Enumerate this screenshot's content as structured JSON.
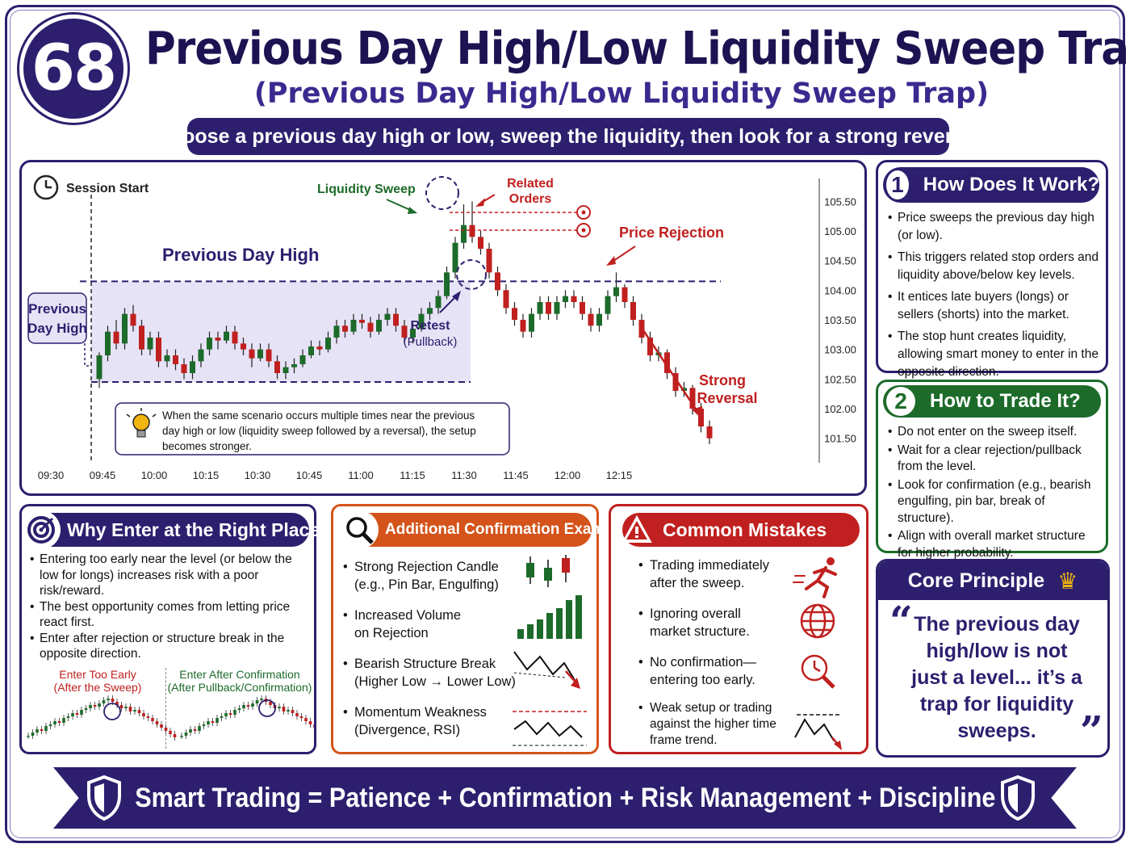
{
  "badge": "68",
  "title": "Previous Day High/Low Liquidity Sweep Trap",
  "subtitle": "(Previous Day High/Low Liquidity Sweep Trap)",
  "tagline": "Choose a previous day high or low, sweep the liquidity, then look for a strong reversal",
  "chart": {
    "session_start": "Session Start",
    "liquidity_sweep": "Liquidity Sweep",
    "related_orders_1": "Related",
    "related_orders_2": "Orders",
    "price_rejection": "Price Rejection",
    "previous_day_high": "Previous Day High",
    "pdh_box_1": "Previous",
    "pdh_box_2": "Day High",
    "retest_1": "Retest",
    "retest_2": "(Pullback)",
    "strong_reversal_1": "Strong",
    "strong_reversal_2": "Reversal",
    "note_1": "When the same scenario occurs multiple times near the previous",
    "note_2": "day high or low (liquidity sweep followed by a reversal), the setup",
    "note_3": "becomes stronger."
  },
  "colors": {
    "navy": "#2d1f6e",
    "green": "#1d6b2a",
    "orange": "#d4531a",
    "red": "#c0201f",
    "gold": "#f2b50f"
  },
  "how_it_works": {
    "number": "1",
    "title": "How Does It Work?",
    "items": [
      "Price sweeps the previous day high (or low).",
      "This triggers related stop orders and liquidity above/below key levels.",
      "It entices late buyers (longs) or sellers (shorts) into the market.",
      "The stop hunt creates liquidity, allowing smart money to enter in the opposite direction."
    ]
  },
  "how_to_trade": {
    "number": "2",
    "title": "How to Trade It?",
    "items": [
      "Do not enter on the sweep itself.",
      "Wait for a clear rejection/pullback from the level.",
      "Look for confirmation (e.g., bearish engulfing, pin bar, break of structure).",
      "Align with overall market structure for higher probability."
    ]
  },
  "core_principle": {
    "title": "Core Principle",
    "crown_icon": "crown-icon",
    "quote": "The previous day high/low is not just a level... it’s a trap for liquidity sweeps."
  },
  "why_enter": {
    "title": "Why Enter at the Right Place?",
    "items": [
      "Entering too early near the level (or below the low for longs) increases risk with a poor risk/reward.",
      "The best opportunity comes from letting price react first.",
      "Enter after rejection or structure break in the opposite direction."
    ],
    "early_1": "Enter Too Early",
    "early_2": "(After the Sweep)",
    "after_1": "Enter After Confirmation",
    "after_2": "(After Pullback/Confirmation)"
  },
  "confirmation": {
    "title": "Additional Confirmation Examples",
    "i1a": "Strong Rejection Candle",
    "i1b": "(e.g., Pin Bar, Engulfing)",
    "i2a": "Increased Volume",
    "i2b": "on Rejection",
    "i3a": "Bearish Structure Break",
    "i3b": "(Higher Low → Lower Low)",
    "i4a": "Momentum Weakness",
    "i4b": "(Divergence, RSI)"
  },
  "mistakes": {
    "title": "Common Mistakes",
    "m1a": "Trading immediately",
    "m1b": "after the sweep.",
    "m2a": "Ignoring overall",
    "m2b": "market structure.",
    "m3a": "No confirmation—",
    "m3b": "entering too early.",
    "m4a": "Weak setup or trading",
    "m4b": "against the higher time",
    "m4c": "frame trend."
  },
  "banner": "Smart Trading = Patience + Confirmation + Risk Management + Discipline",
  "chart_data": {
    "type": "candlestick",
    "x_ticks": [
      "09:30",
      "09:45",
      "10:00",
      "10:15",
      "10:30",
      "10:45",
      "11:00",
      "11:15",
      "11:30",
      "11:45",
      "12:00",
      "12:15"
    ],
    "y_ticks": [
      "105.50",
      "105.00",
      "104.50",
      "104.00",
      "103.50",
      "103.00",
      "102.50",
      "102.00",
      "101.50"
    ],
    "ylim": [
      101.25,
      105.75
    ],
    "previous_day_high": 104.15,
    "range_low": 102.45,
    "candles": [
      [
        102.5,
        102.9,
        102.35,
        102.95
      ],
      [
        102.9,
        103.3,
        102.8,
        103.4
      ],
      [
        103.3,
        103.1,
        103.0,
        103.5
      ],
      [
        103.1,
        103.6,
        103.0,
        103.7
      ],
      [
        103.6,
        103.4,
        103.3,
        103.75
      ],
      [
        103.4,
        103.0,
        102.9,
        103.5
      ],
      [
        103.0,
        103.2,
        102.9,
        103.3
      ],
      [
        103.2,
        102.8,
        102.7,
        103.3
      ],
      [
        102.8,
        102.9,
        102.7,
        103.0
      ],
      [
        102.9,
        102.75,
        102.65,
        103.0
      ],
      [
        102.75,
        102.6,
        102.5,
        102.85
      ],
      [
        102.6,
        102.8,
        102.5,
        102.9
      ],
      [
        102.8,
        103.0,
        102.7,
        103.1
      ],
      [
        103.0,
        103.2,
        102.9,
        103.3
      ],
      [
        103.2,
        103.15,
        103.0,
        103.3
      ],
      [
        103.15,
        103.3,
        103.1,
        103.4
      ],
      [
        103.3,
        103.1,
        103.0,
        103.4
      ],
      [
        103.1,
        103.0,
        102.9,
        103.2
      ],
      [
        103.0,
        102.85,
        102.7,
        103.1
      ],
      [
        102.85,
        103.0,
        102.8,
        103.1
      ],
      [
        103.0,
        102.8,
        102.7,
        103.1
      ],
      [
        102.8,
        102.6,
        102.5,
        102.9
      ],
      [
        102.6,
        102.7,
        102.5,
        102.8
      ],
      [
        102.7,
        102.75,
        102.6,
        102.85
      ],
      [
        102.75,
        102.9,
        102.7,
        103.0
      ],
      [
        102.9,
        103.05,
        102.85,
        103.15
      ],
      [
        103.05,
        103.0,
        102.9,
        103.15
      ],
      [
        103.0,
        103.2,
        102.95,
        103.3
      ],
      [
        103.2,
        103.4,
        103.1,
        103.5
      ],
      [
        103.4,
        103.3,
        103.2,
        103.5
      ],
      [
        103.3,
        103.5,
        103.25,
        103.6
      ],
      [
        103.5,
        103.45,
        103.35,
        103.6
      ],
      [
        103.45,
        103.3,
        103.2,
        103.55
      ],
      [
        103.3,
        103.5,
        103.25,
        103.6
      ],
      [
        103.5,
        103.6,
        103.4,
        103.7
      ],
      [
        103.6,
        103.4,
        103.3,
        103.7
      ],
      [
        103.4,
        103.2,
        103.1,
        103.5
      ],
      [
        103.2,
        103.35,
        103.1,
        103.45
      ],
      [
        103.35,
        103.6,
        103.3,
        103.7
      ],
      [
        103.6,
        103.7,
        103.5,
        103.8
      ],
      [
        103.7,
        103.9,
        103.6,
        104.0
      ],
      [
        103.9,
        104.3,
        103.85,
        104.4
      ],
      [
        104.3,
        104.8,
        104.2,
        104.9
      ],
      [
        104.8,
        105.1,
        104.7,
        105.45
      ],
      [
        105.1,
        104.9,
        104.8,
        105.5
      ],
      [
        104.9,
        104.7,
        104.6,
        105.0
      ],
      [
        104.7,
        104.3,
        104.2,
        104.8
      ],
      [
        104.3,
        104.0,
        103.9,
        104.4
      ],
      [
        104.0,
        103.7,
        103.6,
        104.1
      ],
      [
        103.7,
        103.5,
        103.4,
        103.8
      ],
      [
        103.5,
        103.3,
        103.2,
        103.6
      ],
      [
        103.3,
        103.6,
        103.2,
        103.7
      ],
      [
        103.6,
        103.8,
        103.5,
        103.9
      ],
      [
        103.8,
        103.6,
        103.5,
        103.9
      ],
      [
        103.6,
        103.8,
        103.5,
        103.9
      ],
      [
        103.8,
        103.9,
        103.7,
        104.0
      ],
      [
        103.9,
        103.8,
        103.7,
        104.0
      ],
      [
        103.8,
        103.6,
        103.5,
        103.9
      ],
      [
        103.6,
        103.4,
        103.3,
        103.7
      ],
      [
        103.4,
        103.6,
        103.3,
        103.7
      ],
      [
        103.6,
        103.9,
        103.5,
        104.0
      ],
      [
        103.9,
        104.05,
        103.8,
        104.3
      ],
      [
        104.05,
        103.8,
        103.7,
        104.1
      ],
      [
        103.8,
        103.5,
        103.4,
        103.9
      ],
      [
        103.5,
        103.2,
        103.1,
        103.6
      ],
      [
        103.2,
        102.9,
        102.8,
        103.3
      ],
      [
        102.9,
        102.95,
        102.8,
        103.05
      ],
      [
        102.95,
        102.6,
        102.5,
        103.0
      ],
      [
        102.6,
        102.3,
        102.2,
        102.7
      ],
      [
        102.3,
        102.35,
        102.2,
        102.45
      ],
      [
        102.35,
        102.0,
        101.9,
        102.4
      ],
      [
        102.0,
        101.7,
        101.6,
        102.1
      ],
      [
        101.7,
        101.5,
        101.4,
        101.8
      ]
    ]
  }
}
